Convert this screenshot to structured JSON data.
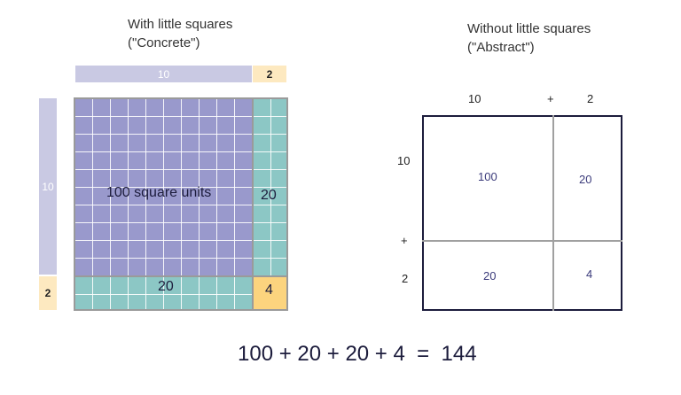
{
  "concrete": {
    "caption_line1": "With little squares",
    "caption_line2": "(\"Concrete\")",
    "top_labels": {
      "ten": "10",
      "two": "2"
    },
    "left_labels": {
      "ten": "10",
      "two": "2"
    },
    "regions": {
      "big": "100 square units",
      "right": "20",
      "bottom": "20",
      "corner": "4"
    }
  },
  "abstract": {
    "caption_line1": "Without little squares",
    "caption_line2": "(\"Abstract\")",
    "top_labels": {
      "ten": "10",
      "plus": "+",
      "two": "2"
    },
    "left_labels": {
      "ten": "10",
      "plus": "+",
      "two": "2"
    },
    "cells": {
      "top_left": "100",
      "top_right": "20",
      "bottom_left": "20",
      "bottom_right": "4"
    }
  },
  "equation": "100 + 20 + 20 + 4  =  144",
  "colors": {
    "lavender": "#9999cc",
    "light_lavender": "#c9c9e3",
    "teal": "#8cc7c5",
    "yellow": "#fcd47e",
    "light_yellow": "#fde9c0",
    "navy": "#1c1c3c"
  }
}
